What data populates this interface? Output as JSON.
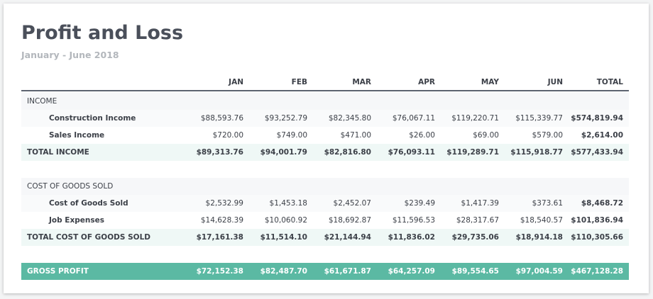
{
  "header": {
    "title": "Profit and Loss",
    "subtitle": "January - June 2018"
  },
  "table": {
    "columns": [
      "JAN",
      "FEB",
      "MAR",
      "APR",
      "MAY",
      "JUN",
      "TOTAL"
    ],
    "sections": [
      {
        "label": "INCOME",
        "rows": [
          {
            "label": "Construction Income",
            "values": [
              "$88,593.76",
              "$93,252.79",
              "$82,345.80",
              "$76,067.11",
              "$119,220.71",
              "$115,339.77",
              "$574,819.94"
            ]
          },
          {
            "label": "Sales Income",
            "values": [
              "$720.00",
              "$749.00",
              "$471.00",
              "$26.00",
              "$69.00",
              "$579.00",
              "$2,614.00"
            ]
          }
        ],
        "total": {
          "label": "TOTAL INCOME",
          "values": [
            "$89,313.76",
            "$94,001.79",
            "$82,816.80",
            "$76,093.11",
            "$119,289.71",
            "$115,918.77",
            "$577,433.94"
          ]
        }
      },
      {
        "label": "COST OF GOODS SOLD",
        "rows": [
          {
            "label": "Cost of Goods Sold",
            "values": [
              "$2,532.99",
              "$1,453.18",
              "$2,452.07",
              "$239.49",
              "$1,417.39",
              "$373.61",
              "$8,468.72"
            ]
          },
          {
            "label": "Job Expenses",
            "values": [
              "$14,628.39",
              "$10,060.92",
              "$18,692.87",
              "$11,596.53",
              "$28,317.67",
              "$18,540.57",
              "$101,836.94"
            ]
          }
        ],
        "total": {
          "label": "TOTAL COST OF GOODS SOLD",
          "values": [
            "$17,161.38",
            "$11,514.10",
            "$21,144.94",
            "$11,836.02",
            "$29,735.06",
            "$18,914.18",
            "$110,305.66"
          ]
        }
      }
    ],
    "gross_profit": {
      "label": "GROSS PROFIT",
      "values": [
        "$72,152.38",
        "$82,487.70",
        "$61,671.87",
        "$64,257.09",
        "$89,554.65",
        "$97,004.59",
        "$467,128.28"
      ]
    }
  }
}
